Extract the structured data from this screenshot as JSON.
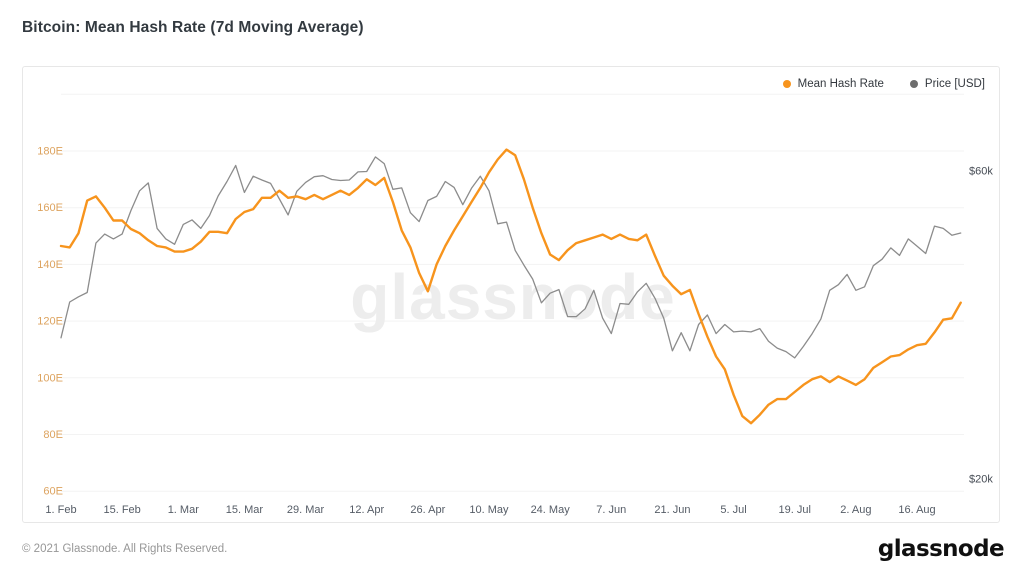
{
  "page": {
    "title": "Bitcoin: Mean Hash Rate (7d Moving Average)",
    "watermark": "glassnode",
    "footer_copyright": "© 2021 Glassnode. All Rights Reserved.",
    "footer_brand": "glassnode"
  },
  "legend": [
    {
      "label": "Mean Hash Rate",
      "color": "#f7941d"
    },
    {
      "label": "Price [USD]",
      "color": "#6d6d6d"
    }
  ],
  "chart_data": {
    "type": "line",
    "title": "Bitcoin: Mean Hash Rate (7d Moving Average)",
    "grid": "horizontal",
    "legend_position": "top-right",
    "colors": {
      "hash_line": "#f7941d",
      "price_line": "#8c8c8c",
      "left_axis_labels": "#dda35f",
      "right_axis_labels": "#454b54",
      "x_axis_labels": "#555c66",
      "gridline": "#f3f3f3",
      "watermark": "#ededed"
    },
    "x": [
      "2021-02-01",
      "2021-02-03",
      "2021-02-05",
      "2021-02-07",
      "2021-02-09",
      "2021-02-11",
      "2021-02-13",
      "2021-02-15",
      "2021-02-17",
      "2021-02-19",
      "2021-02-21",
      "2021-02-23",
      "2021-02-25",
      "2021-02-27",
      "2021-03-01",
      "2021-03-03",
      "2021-03-05",
      "2021-03-07",
      "2021-03-09",
      "2021-03-11",
      "2021-03-13",
      "2021-03-15",
      "2021-03-17",
      "2021-03-19",
      "2021-03-21",
      "2021-03-23",
      "2021-03-25",
      "2021-03-27",
      "2021-03-29",
      "2021-03-31",
      "2021-04-02",
      "2021-04-04",
      "2021-04-06",
      "2021-04-08",
      "2021-04-10",
      "2021-04-12",
      "2021-04-14",
      "2021-04-16",
      "2021-04-18",
      "2021-04-20",
      "2021-04-22",
      "2021-04-24",
      "2021-04-26",
      "2021-04-28",
      "2021-04-30",
      "2021-05-02",
      "2021-05-04",
      "2021-05-06",
      "2021-05-08",
      "2021-05-10",
      "2021-05-12",
      "2021-05-14",
      "2021-05-16",
      "2021-05-18",
      "2021-05-20",
      "2021-05-22",
      "2021-05-24",
      "2021-05-26",
      "2021-05-28",
      "2021-05-30",
      "2021-06-01",
      "2021-06-03",
      "2021-06-05",
      "2021-06-07",
      "2021-06-09",
      "2021-06-11",
      "2021-06-13",
      "2021-06-15",
      "2021-06-17",
      "2021-06-19",
      "2021-06-21",
      "2021-06-23",
      "2021-06-25",
      "2021-06-27",
      "2021-06-29",
      "2021-07-01",
      "2021-07-03",
      "2021-07-05",
      "2021-07-07",
      "2021-07-09",
      "2021-07-11",
      "2021-07-13",
      "2021-07-15",
      "2021-07-17",
      "2021-07-19",
      "2021-07-21",
      "2021-07-23",
      "2021-07-25",
      "2021-07-27",
      "2021-07-29",
      "2021-07-31",
      "2021-08-02",
      "2021-08-04",
      "2021-08-06",
      "2021-08-08",
      "2021-08-10",
      "2021-08-12",
      "2021-08-14",
      "2021-08-16",
      "2021-08-18",
      "2021-08-20",
      "2021-08-22",
      "2021-08-24",
      "2021-08-26"
    ],
    "series": [
      {
        "name": "Mean Hash Rate",
        "axis": "left",
        "unit": "EH/s",
        "color": "#f7941d",
        "values": [
          146.5,
          146,
          151,
          162.5,
          164,
          160,
          155.5,
          155.5,
          152.5,
          151,
          148.5,
          146.5,
          146,
          144.5,
          144.5,
          145.5,
          148,
          151.5,
          151.5,
          151,
          156,
          158.5,
          159.5,
          163.5,
          163.5,
          166,
          163.5,
          164,
          163,
          164.5,
          163,
          164.5,
          166,
          164.5,
          167,
          170,
          168,
          170.5,
          162,
          152,
          146,
          137,
          130.5,
          140,
          146.5,
          152,
          157,
          162,
          167,
          172.5,
          177,
          180.5,
          178.5,
          170,
          160,
          151,
          143.5,
          141.5,
          145,
          147.5,
          148.5,
          149.5,
          150.5,
          149,
          150.5,
          149,
          148.5,
          150.5,
          143,
          136,
          132.5,
          129.5,
          131,
          122.5,
          114.5,
          107.5,
          103,
          94,
          86.5,
          84,
          87,
          90.5,
          92.5,
          92.5,
          95,
          97.5,
          99.5,
          100.5,
          98.5,
          100.5,
          99,
          97.5,
          99.5,
          103.5,
          105.5,
          107.5,
          108,
          110,
          111.5,
          112,
          116,
          120.5,
          121,
          126.5
        ]
      },
      {
        "name": "Price [USD]",
        "axis": "right",
        "unit": "kUSD",
        "color": "#8c8c8c",
        "values": [
          33.1,
          37.6,
          38.3,
          38.9,
          46.4,
          47.9,
          47.1,
          47.9,
          52.1,
          55.9,
          57.5,
          48.9,
          47.1,
          46.2,
          49.6,
          50.4,
          48.9,
          51.2,
          54.9,
          57.8,
          61.2,
          55.6,
          58.9,
          58.1,
          57.4,
          54.3,
          51.3,
          55.8,
          57.6,
          58.8,
          59.0,
          58.2,
          58.0,
          58.1,
          59.8,
          59.9,
          63.1,
          61.6,
          56.2,
          56.5,
          51.7,
          50.1,
          54.0,
          54.8,
          57.8,
          56.6,
          53.2,
          56.4,
          58.9,
          55.9,
          49.7,
          50.0,
          45.2,
          42.9,
          40.8,
          37.5,
          38.8,
          39.3,
          35.7,
          35.7,
          36.7,
          39.2,
          35.5,
          33.6,
          37.4,
          37.3,
          39.0,
          40.2,
          38.1,
          35.5,
          31.6,
          33.7,
          31.6,
          34.7,
          35.9,
          33.6,
          34.7,
          33.8,
          33.9,
          33.8,
          34.2,
          32.7,
          31.9,
          31.5,
          30.8,
          32.1,
          33.6,
          35.4,
          39.2,
          40.0,
          41.5,
          39.2,
          39.7,
          42.8,
          43.8,
          45.6,
          44.4,
          47.1,
          45.9,
          44.7,
          49.3,
          48.9,
          47.7,
          48.1
        ]
      }
    ],
    "left_axis": {
      "scale": "linear",
      "unit": "EH/s",
      "tick_values": [
        60,
        80,
        100,
        120,
        140,
        160,
        180
      ],
      "tick_labels": [
        "60E",
        "80E",
        "100E",
        "120E",
        "140E",
        "160E",
        "180E"
      ],
      "range_shown": [
        60,
        200
      ]
    },
    "right_axis": {
      "scale": "log",
      "unit": "USD",
      "tick_values": [
        20,
        60
      ],
      "tick_labels": [
        "$20k",
        "$60k"
      ]
    },
    "x_axis": {
      "tick_day_offsets": [
        0,
        14,
        28,
        42,
        56,
        70,
        84,
        98,
        112,
        126,
        140,
        154,
        168,
        182,
        196
      ],
      "tick_labels": [
        "1. Feb",
        "15. Feb",
        "1. Mar",
        "15. Mar",
        "29. Mar",
        "12. Apr",
        "26. Apr",
        "10. May",
        "24. May",
        "7. Jun",
        "21. Jun",
        "5. Jul",
        "19. Jul",
        "2. Aug",
        "16. Aug"
      ]
    }
  }
}
